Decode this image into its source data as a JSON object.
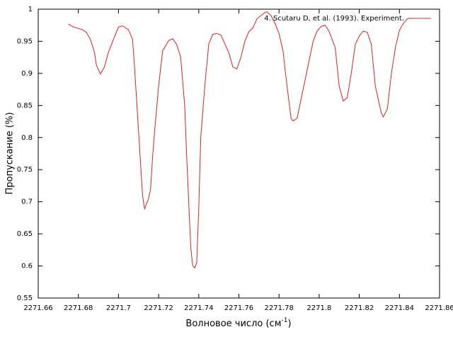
{
  "chart_data": {
    "type": "line",
    "ylabel": "Пропускание (%)",
    "xlabel": [
      "Волновое число (см",
      "-1",
      ")"
    ],
    "xlim": [
      2271.66,
      2271.86
    ],
    "xticks": [
      2271.66,
      2271.68,
      2271.7,
      2271.72,
      2271.74,
      2271.76,
      2271.78,
      2271.8,
      2271.82,
      2271.84,
      2271.86
    ],
    "ylim": [
      0.55,
      1
    ],
    "yticks": [
      0.55,
      0.6,
      0.65,
      0.7,
      0.75,
      0.8,
      0.85,
      0.9,
      0.95,
      1
    ],
    "legend": "upper right",
    "series": [
      {
        "name": "4. Scutaru D, et al. (1993). Experiment.",
        "color": "#e0201f",
        "x": [
          2271.675,
          2271.677,
          2271.682,
          2271.684,
          2271.686,
          2271.688,
          2271.689,
          2271.691,
          2271.693,
          2271.695,
          2271.698,
          2271.7,
          2271.702,
          2271.705,
          2271.707,
          2271.708,
          2271.71,
          2271.712,
          2271.713,
          2271.715,
          2271.716,
          2271.717,
          2271.718,
          2271.72,
          2271.722,
          2271.725,
          2271.727,
          2271.729,
          2271.731,
          2271.733,
          2271.734,
          2271.735,
          2271.736,
          2271.737,
          2271.738,
          2271.739,
          2271.74,
          2271.741,
          2271.743,
          2271.745,
          2271.747,
          2271.749,
          2271.751,
          2271.753,
          2271.755,
          2271.757,
          2271.759,
          2271.761,
          2271.763,
          2271.765,
          2271.767,
          2271.769,
          2271.771,
          2271.773,
          2271.774,
          2271.776,
          2271.778,
          2271.78,
          2271.782,
          2271.784,
          2271.786,
          2271.787,
          2271.789,
          2271.791,
          2271.793,
          2271.795,
          2271.797,
          2271.799,
          2271.801,
          2271.803,
          2271.805,
          2271.808,
          2271.81,
          2271.812,
          2271.814,
          2271.816,
          2271.818,
          2271.82,
          2271.822,
          2271.824,
          2271.826,
          2271.828,
          2271.831,
          2271.832,
          2271.834,
          2271.836,
          2271.838,
          2271.84,
          2271.842,
          2271.844,
          2271.845
        ],
        "values": [
          0.977,
          0.973,
          0.968,
          0.964,
          0.953,
          0.933,
          0.913,
          0.899,
          0.91,
          0.933,
          0.957,
          0.972,
          0.974,
          0.968,
          0.953,
          0.91,
          0.81,
          0.71,
          0.689,
          0.705,
          0.72,
          0.77,
          0.81,
          0.88,
          0.935,
          0.951,
          0.954,
          0.945,
          0.925,
          0.85,
          0.77,
          0.7,
          0.63,
          0.6,
          0.597,
          0.605,
          0.69,
          0.8,
          0.88,
          0.946,
          0.961,
          0.962,
          0.96,
          0.946,
          0.932,
          0.91,
          0.907,
          0.925,
          0.95,
          0.965,
          0.971,
          0.985,
          0.99,
          0.995,
          0.996,
          0.99,
          0.978,
          0.962,
          0.935,
          0.88,
          0.83,
          0.826,
          0.83,
          0.86,
          0.89,
          0.92,
          0.95,
          0.966,
          0.973,
          0.975,
          0.965,
          0.94,
          0.88,
          0.857,
          0.862,
          0.9,
          0.945,
          0.958,
          0.966,
          0.964,
          0.945,
          0.88,
          0.838,
          0.832,
          0.845,
          0.9,
          0.94,
          0.967,
          0.978,
          0.985,
          0.986
        ]
      }
    ]
  }
}
